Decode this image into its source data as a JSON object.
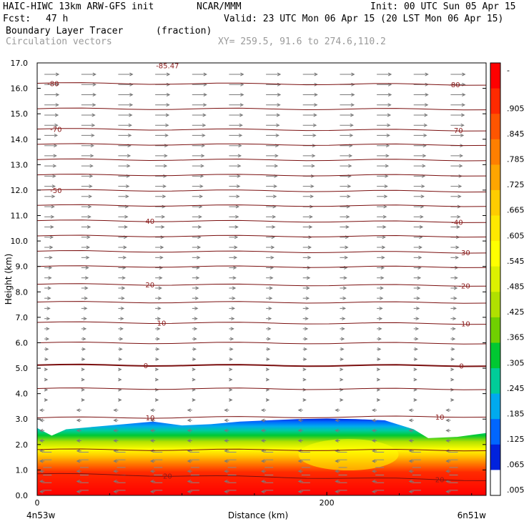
{
  "header": {
    "model": "HAIC-HIWC 13km ARW-GFS init",
    "org": "NCAR/MMM",
    "init": "Init: 00 UTC Sun 05 Apr 15",
    "fcst_label": "Fcst:",
    "fcst_value": "47 h",
    "valid": "Valid: 23 UTC Mon 06 Apr 15 (20 LST Mon 06 Apr 15)",
    "field_name": "Boundary Layer Tracer",
    "field_units": "(fraction)",
    "vector_label": "Circulation vectors",
    "xy_label": "XY= 259.5, 91.6 to 274.6,110.2"
  },
  "chart_data": {
    "type": "heatmap",
    "title": "Boundary Layer Tracer",
    "xlabel": "Distance (km)",
    "ylabel": "Height (km)",
    "xlim": [
      0,
      310
    ],
    "ylim": [
      0,
      17
    ],
    "x_ticks": [
      0,
      200
    ],
    "x_tick_labels": [
      "0",
      "200"
    ],
    "y_ticks": [
      0.0,
      1.0,
      2.0,
      3.0,
      4.0,
      5.0,
      6.0,
      7.0,
      8.0,
      9.0,
      10.0,
      11.0,
      12.0,
      13.0,
      14.0,
      15.0,
      16.0,
      17.0
    ],
    "y_tick_labels": [
      "0.0",
      "1.0",
      "2.0",
      "3.0",
      "4.0",
      "5.0",
      "6.0",
      "7.0",
      "8.0",
      "9.0",
      "10.0",
      "11.0",
      "12.0",
      "13.0",
      "14.0",
      "15.0",
      "16.0",
      "17.0"
    ],
    "x_endpoint_labels": [
      "4n53w",
      "6n51w"
    ],
    "colorbar": {
      "labels": [
        "-",
        ".905",
        ".845",
        ".785",
        ".725",
        ".665",
        ".605",
        ".545",
        ".485",
        ".425",
        ".365",
        ".305",
        ".245",
        ".185",
        ".125",
        ".065",
        ".005"
      ],
      "colors": [
        "#ff0000",
        "#ff2a00",
        "#ff5500",
        "#ff7f00",
        "#ffa500",
        "#ffcc00",
        "#ffe800",
        "#ffff00",
        "#ddf000",
        "#b0e000",
        "#70d000",
        "#00c832",
        "#00cc99",
        "#00aaee",
        "#0066ff",
        "#0022dd",
        "#ffffff"
      ]
    },
    "tracer_top_km": [
      [
        0,
        2.65
      ],
      [
        10,
        2.35
      ],
      [
        20,
        2.6
      ],
      [
        40,
        2.7
      ],
      [
        60,
        2.8
      ],
      [
        80,
        2.9
      ],
      [
        100,
        2.75
      ],
      [
        120,
        2.8
      ],
      [
        140,
        2.9
      ],
      [
        160,
        2.95
      ],
      [
        180,
        3.0
      ],
      [
        200,
        3.02
      ],
      [
        220,
        3.0
      ],
      [
        240,
        2.95
      ],
      [
        260,
        2.6
      ],
      [
        270,
        2.25
      ],
      [
        290,
        2.3
      ],
      [
        310,
        2.45
      ]
    ],
    "temperature_contours": [
      {
        "label": "-80",
        "heights_km": [
          16.2,
          16.15
        ]
      },
      {
        "label": "-70",
        "heights_km": [
          14.4,
          14.35
        ]
      },
      {
        "label": "-50",
        "heights_km": [
          12.0,
          11.95
        ]
      },
      {
        "label": "-40",
        "heights_km": [
          10.8,
          10.75
        ]
      },
      {
        "label": "-30",
        "heights_km": [
          9.6,
          9.55
        ]
      },
      {
        "label": "-20",
        "heights_km": [
          8.3,
          8.25
        ]
      },
      {
        "label": "-10",
        "heights_km": [
          6.8,
          6.75
        ]
      },
      {
        "label": "0",
        "heights_km": [
          5.12,
          5.1
        ]
      },
      {
        "label": "10",
        "heights_km": [
          3.05,
          3.1
        ]
      },
      {
        "label": "20",
        "heights_km": [
          0.85,
          0.6
        ]
      }
    ],
    "unlabeled_contour_heights_km": [
      15.2,
      13.8,
      13.2,
      12.6,
      11.4,
      10.2,
      9.0,
      7.6,
      6.0,
      4.2,
      1.8
    ],
    "top_partial_label": "-85.47",
    "contour_label_positions": [
      {
        "label": "-80",
        "x_km": [
          11,
          288
        ]
      },
      {
        "label": "-70",
        "x_km": [
          13,
          290
        ]
      },
      {
        "label": "-50",
        "x_km": [
          13
        ]
      },
      {
        "label": "-40",
        "x_km": [
          77,
          290
        ]
      },
      {
        "label": "-30",
        "x_km": [
          295
        ]
      },
      {
        "label": "-20",
        "x_km": [
          77,
          295
        ]
      },
      {
        "label": "-10",
        "x_km": [
          85,
          295
        ]
      },
      {
        "label": "0",
        "x_km": [
          75,
          293
        ]
      },
      {
        "label": "10",
        "x_km": [
          78,
          278
        ]
      },
      {
        "label": "20",
        "x_km": [
          90,
          278
        ]
      }
    ]
  }
}
